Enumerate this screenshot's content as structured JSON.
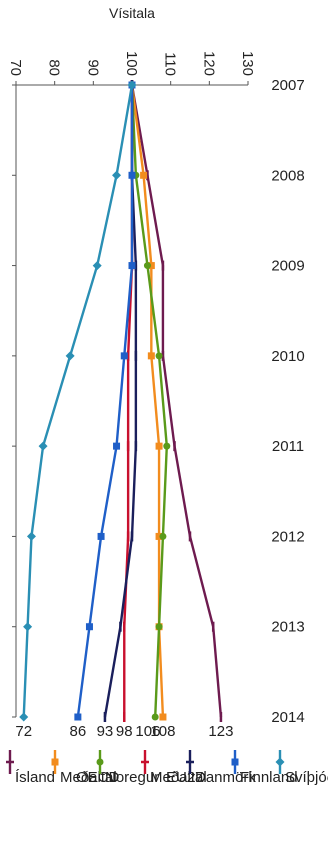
{
  "chart_data": {
    "type": "line",
    "title": "",
    "ylabel": "Vísitala",
    "xlabel": "",
    "ylim": [
      70,
      130
    ],
    "yticks": [
      "70",
      "80",
      "90",
      "100",
      "110",
      "120",
      "130"
    ],
    "x": [
      "2007",
      "2008",
      "2009",
      "2010",
      "2011",
      "2012",
      "2013",
      "2014"
    ],
    "legend_position": "bottom",
    "series": [
      {
        "name": "Ísland",
        "color": "#6e1b4f",
        "marker": "dash",
        "values": [
          100,
          104,
          108,
          108,
          111,
          115,
          121,
          123
        ],
        "end_label": "123"
      },
      {
        "name": "Meðaltal OECD",
        "color": "#f28c1e",
        "marker": "square",
        "values": [
          100,
          103,
          105,
          105,
          107,
          107,
          107,
          108
        ],
        "end_label": "108"
      },
      {
        "name": "Noregur",
        "color": "#5a9a1a",
        "marker": "circle",
        "values": [
          100,
          101,
          104,
          107,
          109,
          108,
          107,
          106
        ],
        "end_label": "106"
      },
      {
        "name": "Meðaltal EU27",
        "color": "#c8102e",
        "marker": "dash",
        "values": [
          100,
          100,
          100,
          99,
          99,
          99,
          98,
          98
        ],
        "end_label": "98"
      },
      {
        "name": "Danmörk",
        "color": "#1a1f5c",
        "marker": "dash",
        "values": [
          100,
          100,
          101,
          101,
          101,
          100,
          97,
          93
        ],
        "end_label": "93"
      },
      {
        "name": "Finnland",
        "color": "#1f5fc8",
        "marker": "square",
        "values": [
          100,
          100,
          100,
          98,
          96,
          92,
          89,
          86
        ],
        "end_label": "86"
      },
      {
        "name": "Svíþjóð",
        "color": "#2a8fb4",
        "marker": "diamond",
        "values": [
          100,
          96,
          91,
          84,
          77,
          74,
          73,
          72
        ],
        "end_label": "72"
      }
    ]
  }
}
